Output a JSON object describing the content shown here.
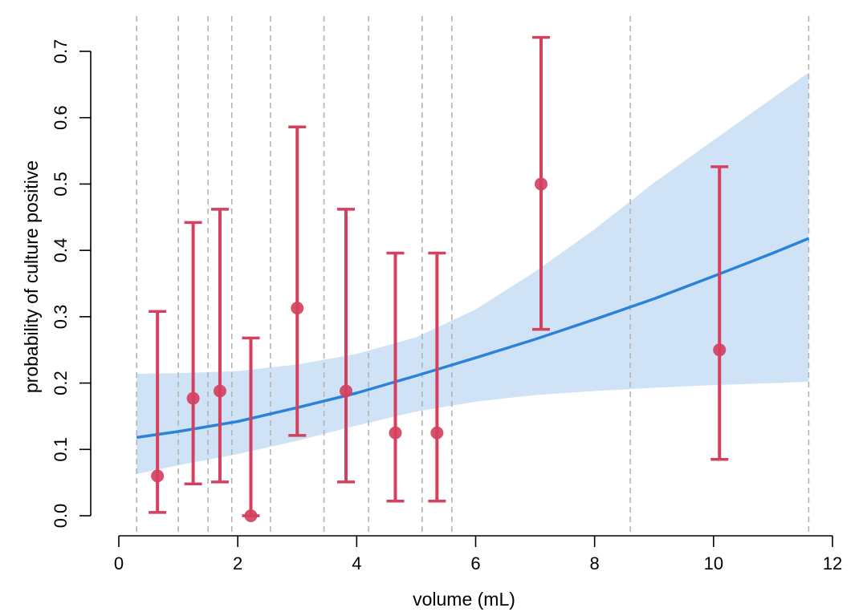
{
  "chart_data": {
    "type": "scatter",
    "title": "",
    "xlabel": "volume (mL)",
    "ylabel": "probability of culture positive",
    "xlim": [
      0,
      12
    ],
    "ylim": [
      0,
      0.7
    ],
    "x_ticks": [
      0,
      2,
      4,
      6,
      8,
      10,
      12
    ],
    "y_ticks": [
      0.0,
      0.1,
      0.2,
      0.3,
      0.4,
      0.5,
      0.6,
      0.7
    ],
    "x_tick_labels": [
      "0",
      "2",
      "4",
      "6",
      "8",
      "10",
      "12"
    ],
    "y_tick_labels": [
      "0.0",
      "0.1",
      "0.2",
      "0.3",
      "0.4",
      "0.5",
      "0.6",
      "0.7"
    ],
    "grid": "vertical dashed reference lines at bin boundaries",
    "bin_boundaries": [
      0.3,
      1.0,
      1.5,
      1.9,
      2.55,
      3.45,
      4.2,
      5.1,
      5.6,
      8.6,
      11.6
    ],
    "points": [
      {
        "x": 0.65,
        "y": 0.06,
        "lower": 0.005,
        "upper": 0.308
      },
      {
        "x": 1.25,
        "y": 0.177,
        "lower": 0.048,
        "upper": 0.442
      },
      {
        "x": 1.7,
        "y": 0.188,
        "lower": 0.051,
        "upper": 0.462
      },
      {
        "x": 2.22,
        "y": 0.0,
        "lower": 0.0,
        "upper": 0.268
      },
      {
        "x": 3.0,
        "y": 0.313,
        "lower": 0.121,
        "upper": 0.586
      },
      {
        "x": 3.82,
        "y": 0.188,
        "lower": 0.051,
        "upper": 0.462
      },
      {
        "x": 4.65,
        "y": 0.125,
        "lower": 0.022,
        "upper": 0.396
      },
      {
        "x": 5.35,
        "y": 0.125,
        "lower": 0.022,
        "upper": 0.396
      },
      {
        "x": 7.1,
        "y": 0.5,
        "lower": 0.281,
        "upper": 0.721
      },
      {
        "x": 10.1,
        "y": 0.25,
        "lower": 0.085,
        "upper": 0.526
      }
    ],
    "fit": {
      "x": [
        0.3,
        1.0,
        2.0,
        3.0,
        4.0,
        5.0,
        6.0,
        7.0,
        8.0,
        9.0,
        10.0,
        11.0,
        11.6
      ],
      "y": [
        0.118,
        0.127,
        0.142,
        0.163,
        0.185,
        0.211,
        0.238,
        0.266,
        0.296,
        0.327,
        0.361,
        0.396,
        0.418
      ]
    },
    "band": {
      "x": [
        0.3,
        1.0,
        2.0,
        3.0,
        4.0,
        5.0,
        6.0,
        7.0,
        8.0,
        9.0,
        10.0,
        11.0,
        11.6
      ],
      "lower": [
        0.063,
        0.076,
        0.093,
        0.113,
        0.136,
        0.157,
        0.172,
        0.182,
        0.188,
        0.193,
        0.197,
        0.2,
        0.202
      ],
      "upper": [
        0.214,
        0.215,
        0.218,
        0.228,
        0.244,
        0.269,
        0.311,
        0.368,
        0.432,
        0.502,
        0.566,
        0.63,
        0.668
      ]
    },
    "colors": {
      "points": "#d4415f",
      "fit_line": "#2a82d9",
      "band": "#cfe2f6",
      "reference_lines": "#b3b3b3"
    }
  }
}
